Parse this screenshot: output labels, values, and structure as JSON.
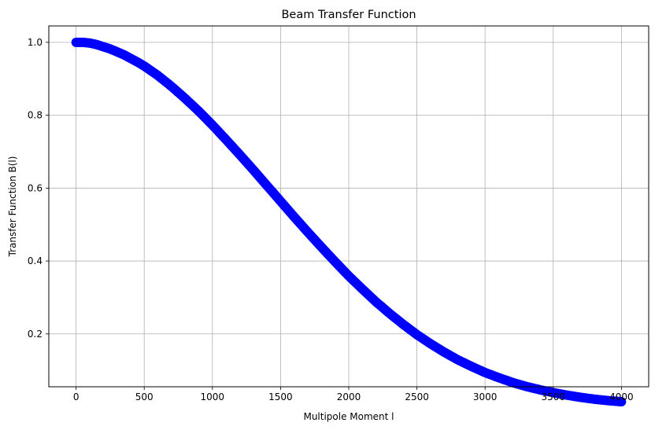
{
  "chart_data": {
    "type": "scatter",
    "title": "Beam Transfer Function",
    "xlabel": "Multipole Moment l",
    "ylabel": "Transfer Function B(l)",
    "xlim": [
      -200,
      4200
    ],
    "ylim": [
      0.055,
      1.045
    ],
    "xticks": [
      0,
      500,
      1000,
      1500,
      2000,
      2500,
      3000,
      3500,
      4000
    ],
    "yticks": [
      0.2,
      0.4,
      0.6,
      0.8,
      1.0
    ],
    "xtick_labels": [
      "0",
      "500",
      "1000",
      "1500",
      "2000",
      "2500",
      "3000",
      "3500",
      "4000"
    ],
    "ytick_labels": [
      "0.2",
      "0.4",
      "0.6",
      "0.8",
      "1.0"
    ],
    "grid": true,
    "marker": "circle",
    "series": [
      {
        "color": "#0000ff",
        "x": [
          0,
          50,
          100,
          150,
          200,
          250,
          300,
          350,
          400,
          450,
          500,
          600,
          700,
          800,
          900,
          1000,
          1100,
          1200,
          1300,
          1400,
          1500,
          1600,
          1700,
          1800,
          1900,
          2000,
          2100,
          2200,
          2300,
          2400,
          2500,
          2600,
          2700,
          2800,
          2900,
          3000,
          3100,
          3200,
          3300,
          3400,
          3500,
          3600,
          3700,
          3800,
          3900,
          4000
        ],
        "y": [
          1.0,
          1.0,
          0.998,
          0.994,
          0.988,
          0.982,
          0.974,
          0.966,
          0.956,
          0.946,
          0.935,
          0.909,
          0.879,
          0.846,
          0.811,
          0.773,
          0.733,
          0.692,
          0.65,
          0.607,
          0.564,
          0.521,
          0.479,
          0.438,
          0.398,
          0.359,
          0.323,
          0.288,
          0.256,
          0.226,
          0.198,
          0.173,
          0.15,
          0.129,
          0.111,
          0.094,
          0.08,
          0.067,
          0.056,
          0.047,
          0.039,
          0.032,
          0.026,
          0.021,
          0.017,
          0.014
        ]
      }
    ]
  }
}
